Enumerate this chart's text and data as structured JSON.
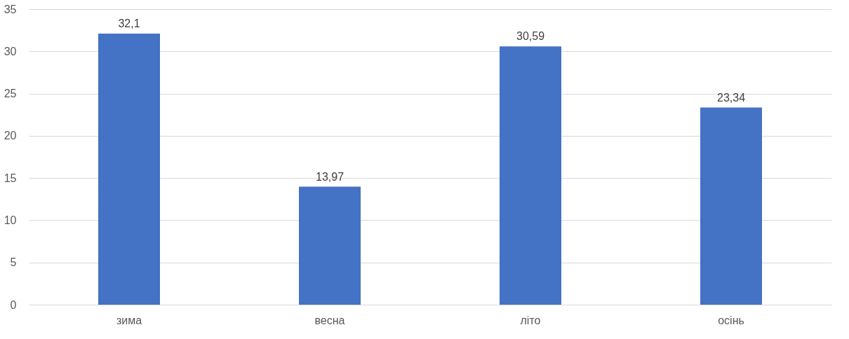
{
  "chart_data": {
    "type": "bar",
    "categories": [
      "зима",
      "весна",
      "літо",
      "осінь"
    ],
    "values": [
      32.1,
      13.97,
      30.59,
      23.34
    ],
    "value_labels": [
      "32,1",
      "13,97",
      "30,59",
      "23,34"
    ],
    "color": "#4472c4",
    "ylim": [
      0,
      35
    ],
    "yticks": [
      0,
      5,
      10,
      15,
      20,
      25,
      30,
      35
    ],
    "grid": "y"
  }
}
